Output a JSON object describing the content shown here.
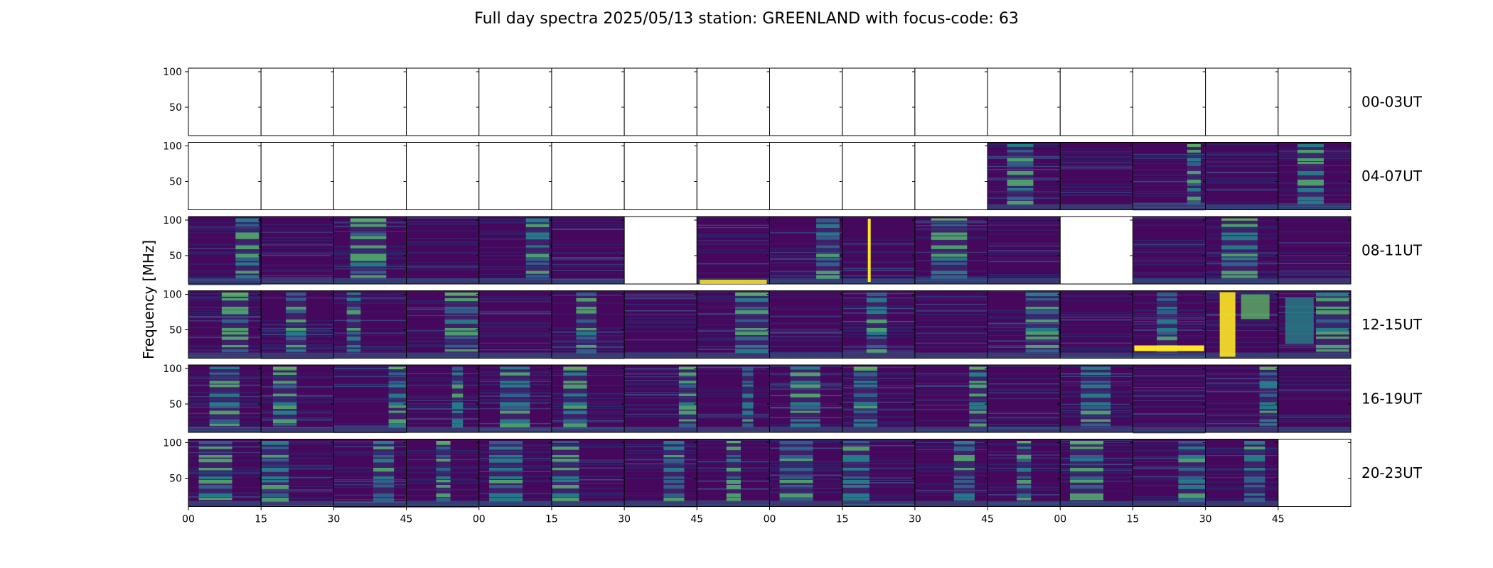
{
  "figure": {
    "title": "Full day spectra 2025/05/13 station: GREENLAND with focus-code: 63"
  },
  "chart_data": {
    "type": "heatmap",
    "title": "Full day spectra 2025/05/13 station: GREENLAND with focus-code: 63",
    "xlabel": "",
    "ylabel": "Frequency [MHz]",
    "y_ticks": [
      "100",
      "50"
    ],
    "ylim": [
      10,
      105
    ],
    "x_ticks": [
      "00",
      "15",
      "30",
      "45",
      "00",
      "15",
      "30",
      "45",
      "00",
      "15",
      "30",
      "45",
      "00",
      "15",
      "30",
      "45"
    ],
    "colormap": "viridis",
    "colors": {
      "low": "#440154",
      "mid": "#21918c",
      "high": "#fde725",
      "nodata": "#ffffff"
    },
    "panels_per_row": 16,
    "rows": [
      {
        "label": "00-03UT",
        "panels": [
          "empty",
          "empty",
          "empty",
          "empty",
          "empty",
          "empty",
          "empty",
          "empty",
          "empty",
          "empty",
          "empty",
          "empty",
          "empty",
          "empty",
          "empty",
          "empty"
        ]
      },
      {
        "label": "04-07UT",
        "panels": [
          "empty",
          "empty",
          "empty",
          "empty",
          "empty",
          "empty",
          "empty",
          "empty",
          "empty",
          "empty",
          "empty",
          "data",
          "data",
          "data",
          "data",
          "data"
        ]
      },
      {
        "label": "08-11UT",
        "panels": [
          "data",
          "data",
          "data",
          "data",
          "data",
          "data",
          "empty",
          "data",
          "data",
          "data",
          "data",
          "data",
          "empty",
          "data",
          "data",
          "data"
        ]
      },
      {
        "label": "12-15UT",
        "panels": [
          "data",
          "data",
          "data",
          "data",
          "data",
          "data",
          "data",
          "data",
          "data",
          "data",
          "data",
          "data",
          "data",
          "data",
          "data",
          "data"
        ]
      },
      {
        "label": "16-19UT",
        "panels": [
          "data",
          "data",
          "data",
          "data",
          "data",
          "data",
          "data",
          "data",
          "data",
          "data",
          "data",
          "data",
          "data",
          "data",
          "data",
          "data"
        ]
      },
      {
        "label": "20-23UT",
        "panels": [
          "data",
          "data",
          "data",
          "data",
          "data",
          "data",
          "data",
          "data",
          "data",
          "data",
          "data",
          "data",
          "data",
          "data",
          "data",
          "empty"
        ]
      }
    ]
  }
}
